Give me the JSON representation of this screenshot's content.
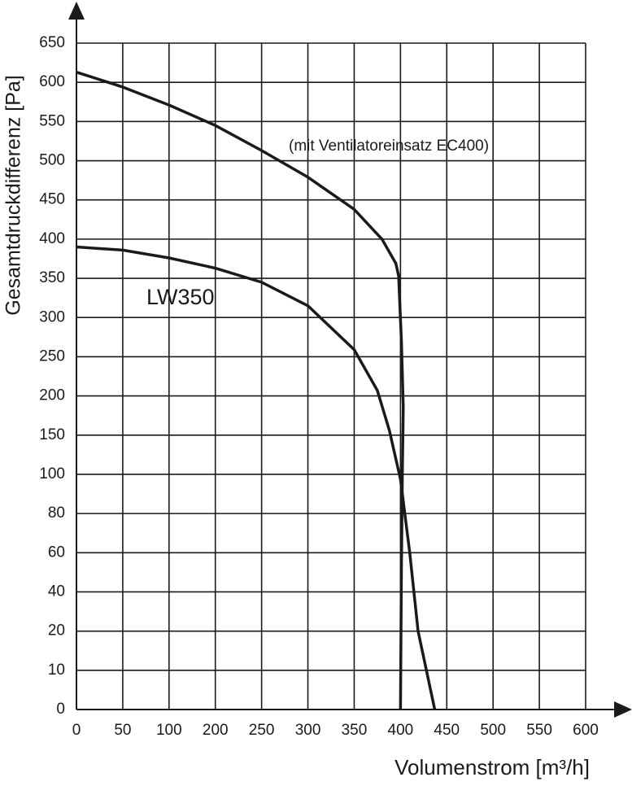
{
  "chart_data": {
    "type": "line",
    "annotations": [
      "(mit Ventilatoreinsatz EC400)",
      "LW350"
    ],
    "xlabel": "Volumenstrom [m³/h]",
    "ylabel": "Gesamtdruckdifferenz [Pa]",
    "xlim": [
      0,
      600
    ],
    "xticks": [
      0,
      50,
      100,
      200,
      250,
      300,
      350,
      400,
      450,
      500,
      550,
      600
    ],
    "ylim": [
      0,
      650
    ],
    "yticks": [
      0,
      10,
      20,
      40,
      60,
      80,
      100,
      150,
      200,
      250,
      300,
      350,
      400,
      450,
      500,
      550,
      600,
      650
    ],
    "grid": true,
    "series": [
      {
        "name": "EC400",
        "color": "#1a1a1a",
        "x": [
          0,
          50,
          100,
          200,
          250,
          300,
          350,
          380,
          395,
          398,
          401,
          403,
          402,
          401,
          400
        ],
        "values": [
          613,
          594,
          571,
          545,
          513,
          479,
          438,
          400,
          369,
          353,
          270,
          186,
          100,
          52,
          0
        ]
      },
      {
        "name": "LW350",
        "color": "#1a1a1a",
        "x": [
          0,
          50,
          100,
          200,
          250,
          300,
          350,
          375,
          388,
          400,
          410,
          419,
          437
        ],
        "values": [
          390,
          386,
          376,
          363,
          345,
          315,
          259,
          207,
          156,
          97.5,
          60,
          20,
          0
        ]
      }
    ]
  }
}
